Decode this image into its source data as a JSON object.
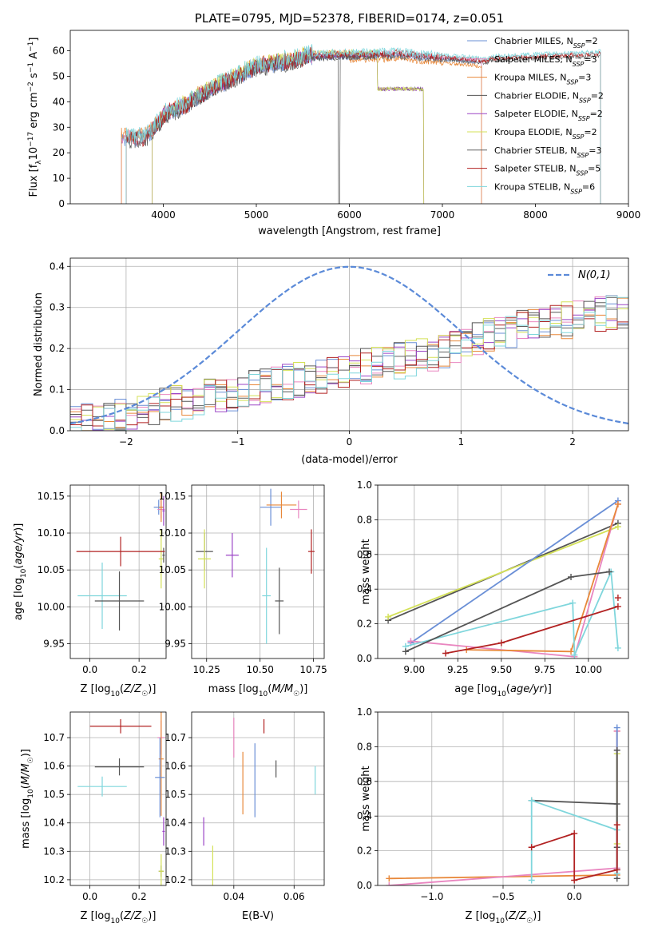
{
  "chart_data": [
    {
      "type": "line",
      "title": "PLATE=0795, MJD=52378, FIBERID=0174, z=0.051",
      "xlabel": "wavelength [Angstrom, rest frame]",
      "ylabel": "Flux [f_λ10^-17 erg cm^-2 s^-1 A^-1]",
      "ylabel_parts": {
        "a": "Flux [f",
        "b": "λ",
        "c": "10",
        "d": "−17",
        "e": " erg cm",
        "f": "−2",
        "g": " s",
        "h": "−1",
        "i": " A",
        "j": "−1",
        "k": "]"
      },
      "xlim": [
        3000,
        9000
      ],
      "ylim": [
        0,
        68
      ],
      "xticks": [
        4000,
        5000,
        6000,
        7000,
        8000,
        9000
      ],
      "yticks": [
        0,
        10,
        20,
        30,
        40,
        50,
        60
      ],
      "legend_placement": "right",
      "series": [
        {
          "name": "Chabrier MILES",
          "nssp": "2",
          "color": "#6a8fd6",
          "range": [
            3550,
            7420
          ]
        },
        {
          "name": "Salpeter MILES",
          "nssp": "3",
          "color": "#e986c0",
          "range": [
            3550,
            7420
          ]
        },
        {
          "name": "Kroupa MILES",
          "nssp": "3",
          "color": "#e8883a",
          "range": [
            3550,
            7420
          ]
        },
        {
          "name": "Chabrier ELODIE",
          "nssp": "2",
          "color": "#555555",
          "range": [
            3880,
            6800
          ]
        },
        {
          "name": "Salpeter ELODIE",
          "nssp": "2",
          "color": "#9b45c6",
          "range": [
            3880,
            6800
          ]
        },
        {
          "name": "Kroupa ELODIE",
          "nssp": "2",
          "color": "#d4e157",
          "range": [
            3880,
            6800
          ]
        },
        {
          "name": "Chabrier STELIB",
          "nssp": "3",
          "color": "#606060",
          "range": [
            3600,
            8700
          ]
        },
        {
          "name": "Salpeter STELIB",
          "nssp": "5",
          "color": "#b22222",
          "range": [
            3600,
            8700
          ]
        },
        {
          "name": "Kroupa STELIB",
          "nssp": "6",
          "color": "#7fd6dc",
          "range": [
            3600,
            8700
          ]
        }
      ]
    },
    {
      "type": "line",
      "xlabel": "(data-model)/error",
      "ylabel": "Normed distribution",
      "xlim": [
        -2.5,
        2.5
      ],
      "ylim": [
        0,
        0.42
      ],
      "xticks": [
        -2,
        -1,
        0,
        1,
        2
      ],
      "yticks": [
        0.0,
        0.1,
        0.2,
        0.3,
        0.4
      ],
      "grid": true,
      "legend_placement": "top-right",
      "gaussian": {
        "name": "N(0,1)",
        "color": "#5b8ad8",
        "mean": 0,
        "sigma": 1
      },
      "hist_bin_width": 0.1
    },
    {
      "type": "scatter",
      "xlabel": "Z [log10(Z/Z☉)]",
      "ylabel": "age [log10(age/yr)]",
      "xlim": [
        -0.08,
        0.31
      ],
      "ylim": [
        9.93,
        10.165
      ],
      "xticks": [
        0.0,
        0.2
      ],
      "yticks": [
        9.95,
        10.0,
        10.05,
        10.1,
        10.15
      ],
      "grid": true,
      "points": [
        {
          "color": "#6a8fd6",
          "x": 0.28,
          "y": 10.135,
          "xerr": 0.02,
          "yerr": 0.01
        },
        {
          "color": "#e986c0",
          "x": 0.29,
          "y": 10.132,
          "xerr": 0.015,
          "yerr": 0.012
        },
        {
          "color": "#e8883a",
          "x": 0.29,
          "y": 10.135,
          "xerr": 0.01,
          "yerr": 0.02
        },
        {
          "color": "#9b45c6",
          "x": 0.3,
          "y": 10.13,
          "xerr": 0.005,
          "yerr": 0.02
        },
        {
          "color": "#d4e157",
          "x": 0.29,
          "y": 10.065,
          "xerr": 0.01,
          "yerr": 0.04
        },
        {
          "color": "#555555",
          "x": 0.3,
          "y": 10.07,
          "xerr": 0.005,
          "yerr": 0.01
        },
        {
          "color": "#b22222",
          "x": 0.125,
          "y": 10.075,
          "xerr": 0.18,
          "yerr": 0.02
        },
        {
          "color": "#7fd6dc",
          "x": 0.05,
          "y": 10.015,
          "xerr": 0.1,
          "yerr": 0.045
        },
        {
          "color": "#555555",
          "x": 0.12,
          "y": 10.008,
          "xerr": 0.1,
          "yerr": 0.04
        }
      ]
    },
    {
      "type": "scatter",
      "xlabel": "mass [log10(M/M☉)]",
      "xlim": [
        10.18,
        10.8
      ],
      "ylim": [
        9.93,
        10.165
      ],
      "xticks": [
        10.25,
        10.5,
        10.75
      ],
      "yticks": [
        9.95,
        10.0,
        10.05,
        10.1,
        10.15
      ],
      "grid": true,
      "points": [
        {
          "color": "#555555",
          "x": 10.24,
          "y": 10.075,
          "xerr": 0.04,
          "yerr": 0.025
        },
        {
          "color": "#d4e157",
          "x": 10.24,
          "y": 10.065,
          "xerr": 0.03,
          "yerr": 0.04
        },
        {
          "color": "#9b45c6",
          "x": 10.37,
          "y": 10.07,
          "xerr": 0.03,
          "yerr": 0.03
        },
        {
          "color": "#6a8fd6",
          "x": 10.55,
          "y": 10.135,
          "xerr": 0.05,
          "yerr": 0.025
        },
        {
          "color": "#e8883a",
          "x": 10.6,
          "y": 10.138,
          "xerr": 0.07,
          "yerr": 0.018
        },
        {
          "color": "#e986c0",
          "x": 10.68,
          "y": 10.132,
          "xerr": 0.04,
          "yerr": 0.012
        },
        {
          "color": "#b22222",
          "x": 10.74,
          "y": 10.075,
          "xerr": 0.015,
          "yerr": 0.03
        },
        {
          "color": "#7fd6dc",
          "x": 10.53,
          "y": 10.015,
          "xerr": 0.02,
          "yerr": 0.065
        },
        {
          "color": "#555555",
          "x": 10.59,
          "y": 10.008,
          "xerr": 0.02,
          "yerr": 0.045
        }
      ]
    },
    {
      "type": "line",
      "xlabel": "age [log10(age/yr)]",
      "ylabel": "mass weight",
      "xlim": [
        8.79,
        10.23
      ],
      "ylim": [
        0,
        1.0
      ],
      "xticks": [
        9.0,
        9.25,
        9.5,
        9.75,
        10.0
      ],
      "yticks": [
        0.0,
        0.2,
        0.4,
        0.6,
        0.8,
        1.0
      ],
      "grid": true,
      "series": [
        {
          "color": "#555555",
          "points": [
            [
              8.85,
              0.22
            ],
            [
              10.17,
              0.78
            ]
          ]
        },
        {
          "color": "#d4e157",
          "points": [
            [
              8.85,
              0.24
            ],
            [
              10.17,
              0.76
            ]
          ]
        },
        {
          "color": "#6a8fd6",
          "points": [
            [
              8.98,
              0.09
            ],
            [
              10.17,
              0.91
            ]
          ]
        },
        {
          "color": "#e986c0",
          "points": [
            [
              8.98,
              0.1
            ],
            [
              9.92,
              0.01
            ],
            [
              10.17,
              0.89
            ]
          ]
        },
        {
          "color": "#e8883a",
          "points": [
            [
              9.3,
              0.05
            ],
            [
              9.9,
              0.04
            ],
            [
              10.17,
              0.89
            ]
          ]
        },
        {
          "color": "#7fd6dc",
          "points": [
            [
              8.95,
              0.07
            ],
            [
              9.91,
              0.32
            ],
            [
              9.92,
              0.02
            ],
            [
              10.13,
              0.5
            ],
            [
              10.17,
              0.06
            ]
          ]
        },
        {
          "color": "#b22222",
          "points": [
            [
              9.18,
              0.03
            ],
            [
              9.5,
              0.09
            ],
            [
              10.17,
              0.3
            ]
          ]
        },
        {
          "color": "#b22222",
          "points": [
            [
              10.17,
              0.35
            ]
          ]
        },
        {
          "color": "#555555",
          "points": [
            [
              8.95,
              0.04
            ],
            [
              9.9,
              0.47
            ],
            [
              10.12,
              0.5
            ]
          ]
        }
      ]
    },
    {
      "type": "scatter",
      "xlabel": "Z [log10(Z/Z☉)]",
      "ylabel": "mass [log10(M/M☉)]",
      "xlim": [
        -0.08,
        0.31
      ],
      "ylim": [
        10.18,
        10.79
      ],
      "xticks": [
        0.0,
        0.2
      ],
      "yticks": [
        10.2,
        10.3,
        10.4,
        10.5,
        10.6,
        10.7
      ],
      "grid": true,
      "points": [
        {
          "color": "#b22222",
          "x": 0.125,
          "y": 10.74,
          "xerr": 0.125,
          "yerr": 0.025
        },
        {
          "color": "#555555",
          "x": 0.12,
          "y": 10.597,
          "xerr": 0.1,
          "yerr": 0.03
        },
        {
          "color": "#7fd6dc",
          "x": 0.05,
          "y": 10.528,
          "xerr": 0.1,
          "yerr": 0.035
        },
        {
          "color": "#e986c0",
          "x": 0.29,
          "y": 10.7,
          "xerr": 0.015,
          "yerr": 0.06
        },
        {
          "color": "#e8883a",
          "x": 0.29,
          "y": 10.625,
          "xerr": 0.01,
          "yerr": 0.2
        },
        {
          "color": "#6a8fd6",
          "x": 0.285,
          "y": 10.56,
          "xerr": 0.02,
          "yerr": 0.14
        },
        {
          "color": "#9b45c6",
          "x": 0.3,
          "y": 10.37,
          "xerr": 0.005,
          "yerr": 0.05
        },
        {
          "color": "#555555",
          "x": 0.29,
          "y": 10.23,
          "xerr": 0.01,
          "yerr": 0.02
        },
        {
          "color": "#d4e157",
          "x": 0.29,
          "y": 10.23,
          "xerr": 0.01,
          "yerr": 0.06
        }
      ]
    },
    {
      "type": "scatter",
      "xlabel": "E(B-V)",
      "xlim": [
        0.026,
        0.07
      ],
      "ylim": [
        10.18,
        10.79
      ],
      "xticks": [
        0.04,
        0.06
      ],
      "yticks": [
        10.2,
        10.3,
        10.4,
        10.5,
        10.6,
        10.7
      ],
      "grid": true,
      "points": [
        {
          "color": "#9b45c6",
          "x": 0.03,
          "y": 10.37,
          "yerr": 0.05
        },
        {
          "color": "#d4e157",
          "x": 0.033,
          "y": 10.23,
          "yerr": 0.09
        },
        {
          "color": "#e986c0",
          "x": 0.04,
          "y": 10.7,
          "yerr": 0.07
        },
        {
          "color": "#e8883a",
          "x": 0.043,
          "y": 10.54,
          "yerr": 0.11
        },
        {
          "color": "#6a8fd6",
          "x": 0.047,
          "y": 10.55,
          "yerr": 0.13
        },
        {
          "color": "#b22222",
          "x": 0.05,
          "y": 10.74,
          "yerr": 0.025
        },
        {
          "color": "#555555",
          "x": 0.054,
          "y": 10.59,
          "yerr": 0.03
        },
        {
          "color": "#7fd6dc",
          "x": 0.067,
          "y": 10.55,
          "yerr": 0.05
        }
      ]
    },
    {
      "type": "line",
      "xlabel": "Z [log10(Z/Z☉)]",
      "ylabel": "mass weight",
      "xlim": [
        -1.38,
        0.38
      ],
      "ylim": [
        0,
        1.0
      ],
      "xticks": [
        -1.0,
        -0.5,
        0.0
      ],
      "yticks": [
        0.0,
        0.2,
        0.4,
        0.6,
        0.8,
        1.0
      ],
      "grid": true,
      "series": [
        {
          "color": "#e8883a",
          "points": [
            [
              -1.3,
              0.04
            ],
            [
              0.3,
              0.06
            ],
            [
              0.3,
              0.89
            ]
          ]
        },
        {
          "color": "#e986c0",
          "points": [
            [
              -1.3,
              0.0
            ],
            [
              0.3,
              0.1
            ],
            [
              0.3,
              0.89
            ]
          ]
        },
        {
          "color": "#6a8fd6",
          "points": [
            [
              0.3,
              0.09
            ],
            [
              0.3,
              0.91
            ]
          ]
        },
        {
          "color": "#d4e157",
          "points": [
            [
              0.3,
              0.24
            ],
            [
              0.3,
              0.76
            ]
          ]
        },
        {
          "color": "#555555",
          "points": [
            [
              -0.3,
              0.49
            ],
            [
              0.3,
              0.47
            ],
            [
              0.3,
              0.04
            ]
          ]
        },
        {
          "color": "#555555",
          "points": [
            [
              0.3,
              0.22
            ],
            [
              0.3,
              0.78
            ]
          ]
        },
        {
          "color": "#7fd6dc",
          "points": [
            [
              -0.3,
              0.03
            ],
            [
              -0.3,
              0.49
            ],
            [
              0.3,
              0.32
            ],
            [
              0.3,
              0.07
            ]
          ]
        },
        {
          "color": "#b22222",
          "points": [
            [
              -0.3,
              0.22
            ],
            [
              0.0,
              0.3
            ],
            [
              0.0,
              0.03
            ],
            [
              0.3,
              0.09
            ],
            [
              0.3,
              0.35
            ]
          ]
        }
      ]
    }
  ]
}
